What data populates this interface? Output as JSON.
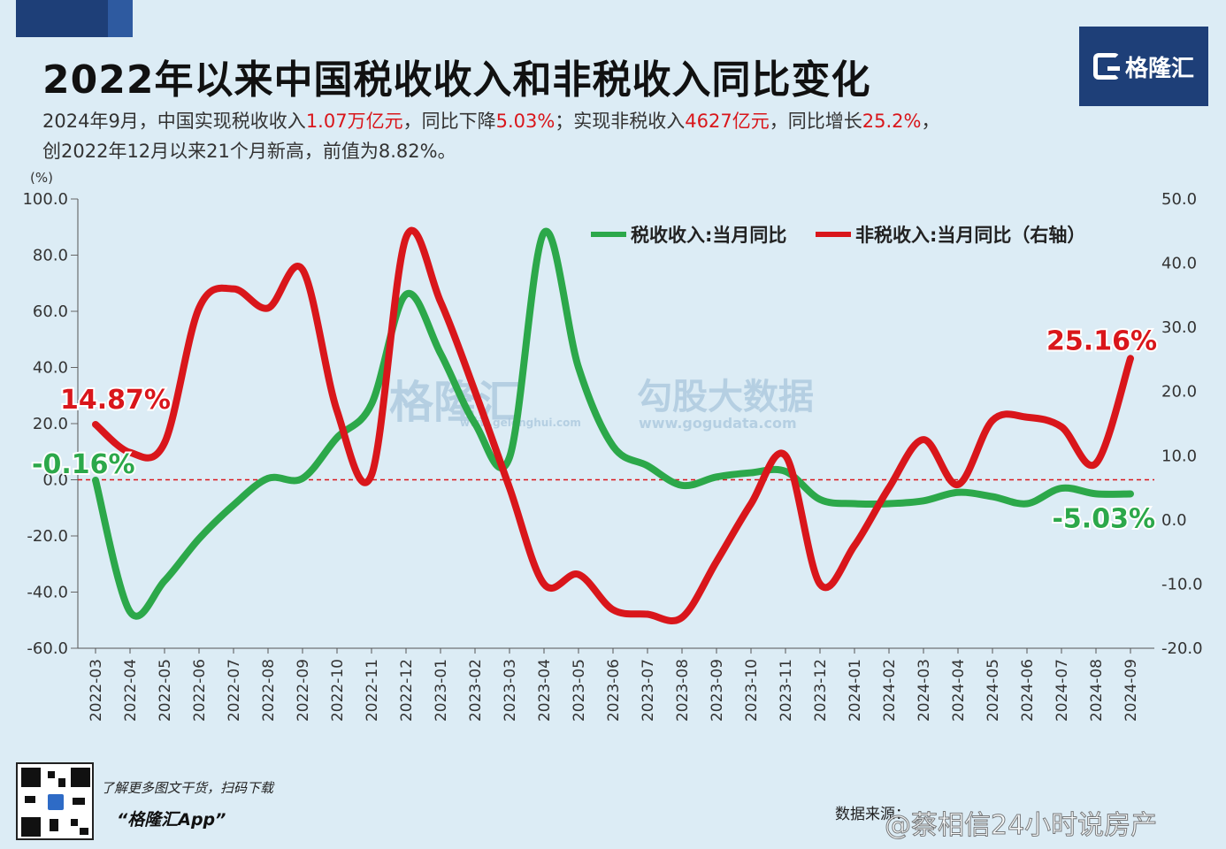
{
  "title": "2022年以来中国税收收入和非税收入同比变化",
  "subtitle": {
    "line1_parts": [
      "2024年9月，中国实现税收收入",
      "1.07万亿元",
      "，同比下降",
      "5.03%",
      "；实现非税收入",
      "4627亿元",
      "，同比增长",
      "25.2%",
      "，"
    ],
    "line2": "创2022年12月以来21个月新高，前值为8.82%。"
  },
  "logo": {
    "text": "格隆汇"
  },
  "footer": {
    "promo": "了解更多图文干货，扫码下载",
    "app": "“格隆汇App”",
    "source": "数据来源：",
    "weibo": "@蔡相信24小时说房产"
  },
  "colors": {
    "tax": "#2ca84a",
    "nontax": "#d9161b",
    "zero_line": "#d9161b",
    "header": "#1e3f78",
    "background": "#dcecf5"
  },
  "chart_data": {
    "type": "line",
    "unit_label": "(%)",
    "categories": [
      "2022-03",
      "2022-04",
      "2022-05",
      "2022-06",
      "2022-07",
      "2022-08",
      "2022-09",
      "2022-10",
      "2022-11",
      "2022-12",
      "2023-01",
      "2023-02",
      "2023-03",
      "2023-04",
      "2023-05",
      "2023-06",
      "2023-07",
      "2023-08",
      "2023-09",
      "2023-10",
      "2023-11",
      "2023-12",
      "2024-01",
      "2024-02",
      "2024-03",
      "2024-04",
      "2024-05",
      "2024-06",
      "2024-07",
      "2024-08",
      "2024-09"
    ],
    "y_left": {
      "lim": [
        -60,
        100
      ],
      "ticks": [
        "-60.0",
        "-40.0",
        "-20.0",
        "0.0",
        "20.0",
        "40.0",
        "60.0",
        "80.0",
        "100.0"
      ]
    },
    "y_right": {
      "lim": [
        -20,
        50
      ],
      "ticks": [
        "-20.0",
        "-10.0",
        "0.0",
        "10.0",
        "20.0",
        "30.0",
        "40.0",
        "50.0"
      ]
    },
    "series": [
      {
        "name": "税收收入:当月同比",
        "axis": "left",
        "color": "#2ca84a",
        "values": [
          -0.16,
          -47,
          -36,
          -21,
          -9,
          0.5,
          0.5,
          15,
          27,
          66,
          45,
          20,
          8,
          88,
          40,
          12,
          5,
          -2,
          1,
          2.5,
          3,
          -7,
          -8.5,
          -8.5,
          -7.5,
          -4.5,
          -6,
          -8.5,
          -3,
          -5,
          -5.03
        ]
      },
      {
        "name": "非税收入:当月同比（右轴）",
        "axis": "right",
        "color": "#d9161b",
        "values": [
          14.87,
          10.5,
          12,
          33,
          36,
          33,
          39,
          17,
          7,
          44,
          34,
          20,
          5,
          -10,
          -8.5,
          -14,
          -14.7,
          -15.2,
          -6.5,
          2.5,
          10,
          -10,
          -4,
          5,
          12.5,
          5.5,
          15.5,
          16,
          14.5,
          8.8,
          25.16
        ]
      }
    ],
    "annotations": [
      {
        "text": "14.87%",
        "color": "#d9161b",
        "series": 1,
        "index": 0
      },
      {
        "text": "-0.16%",
        "color": "#2ca84a",
        "series": 0,
        "index": 0
      },
      {
        "text": "25.16%",
        "color": "#d9161b",
        "series": 1,
        "index": 30
      },
      {
        "text": "-5.03%",
        "color": "#2ca84a",
        "series": 0,
        "index": 30
      }
    ],
    "legend_position": "top-right",
    "watermarks": [
      "格隆汇",
      "www.gelonghui.com",
      "勾股大数据",
      "www.gogudata.com"
    ],
    "grid": false
  }
}
